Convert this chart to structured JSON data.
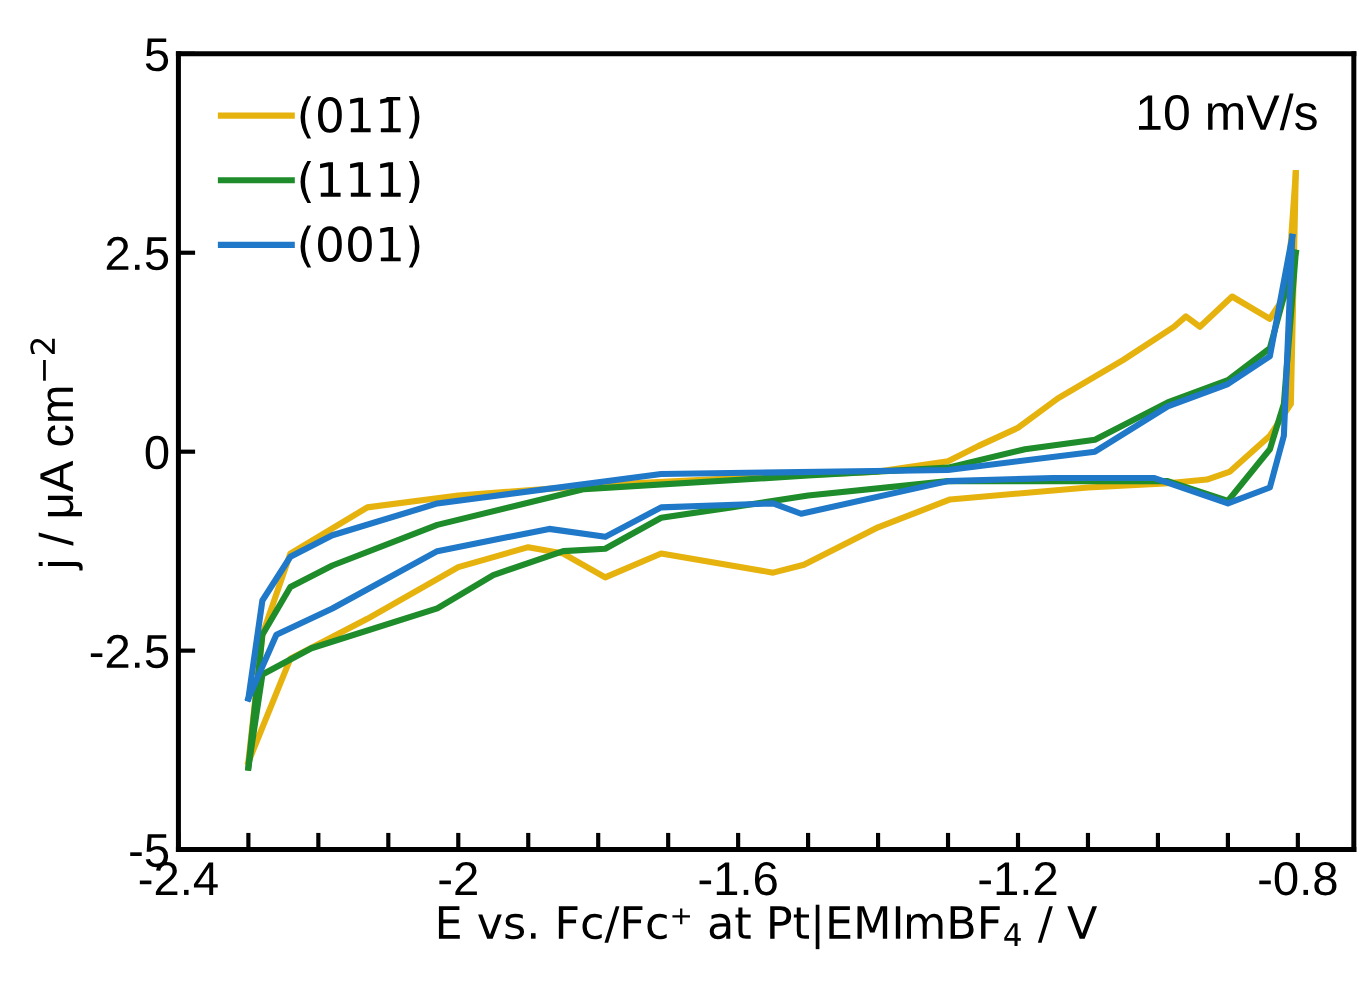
{
  "chart_data": {
    "type": "line",
    "xlabel": "E vs. Fc/Fc⁺ at Pt|EMImBF$_{4}$ / V",
    "ylabel": "j / μA cm$^{−2}$",
    "annotations": [
      "10 mV/s"
    ],
    "xlim": [
      -2.4,
      -0.72
    ],
    "ylim": [
      -5,
      5
    ],
    "xticks": [
      -2.4,
      {
        "value": -2.3,
        "label": null
      },
      {
        "value": -2.2,
        "label": null
      },
      {
        "value": -2.1,
        "label": null
      },
      -2,
      {
        "value": -1.9,
        "label": null
      },
      {
        "value": -1.8,
        "label": null
      },
      {
        "value": -1.7,
        "label": null
      },
      -1.6,
      {
        "value": -1.5,
        "label": null
      },
      {
        "value": -1.4,
        "label": null
      },
      {
        "value": -1.3,
        "label": null
      },
      -1.2,
      {
        "value": -1.1,
        "label": null
      },
      {
        "value": -1.0,
        "label": null
      },
      {
        "value": -0.9,
        "label": null
      },
      -0.8
    ],
    "yticks": [
      5,
      2.5,
      0,
      -2.5,
      -5
    ],
    "legend": "top left",
    "grid": false,
    "series": [
      {
        "name": "(011̄)",
        "color": "#e6b20e",
        "x": [
          -2.3,
          -2.28,
          -2.24,
          -2.13,
          -2.0,
          -1.8,
          -1.6,
          -1.4,
          -1.3,
          -1.257,
          -1.2,
          -1.143,
          -1.05,
          -0.977,
          -0.96,
          -0.94,
          -0.894,
          -0.84,
          -0.815,
          -0.803
        ],
        "values": [
          -3.9,
          -2.3,
          -1.28,
          -0.7,
          -0.55,
          -0.42,
          -0.33,
          -0.25,
          -0.12,
          0.07,
          0.3,
          0.67,
          1.15,
          1.57,
          1.7,
          1.57,
          1.95,
          1.67,
          2.0,
          3.5
        ]
      },
      {
        "color": "#e6b20e",
        "x": [
          -0.803,
          -0.81,
          -0.84,
          -0.897,
          -0.93,
          -0.99,
          -1.1,
          -1.297,
          -1.4,
          -1.506,
          -1.55,
          -1.71,
          -1.79,
          -1.85,
          -1.9,
          -2.0,
          -2.13,
          -2.24,
          -2.3
        ],
        "values": [
          3.5,
          0.6,
          0.2,
          -0.25,
          -0.35,
          -0.4,
          -0.45,
          -0.6,
          -0.95,
          -1.42,
          -1.52,
          -1.28,
          -1.58,
          -1.28,
          -1.2,
          -1.45,
          -2.1,
          -2.6,
          -3.9
        ]
      },
      {
        "name": "(111)",
        "color": "#1e8c2a",
        "x": [
          -2.3,
          -2.28,
          -2.24,
          -2.18,
          -2.03,
          -1.82,
          -1.5,
          -1.3,
          -1.19,
          -1.09,
          -0.986,
          -0.9,
          -0.84,
          -0.803
        ],
        "values": [
          -3.97,
          -2.3,
          -1.7,
          -1.43,
          -0.92,
          -0.47,
          -0.3,
          -0.2,
          0.03,
          0.15,
          0.62,
          0.9,
          1.3,
          2.5
        ]
      },
      {
        "color": "#1e8c2a",
        "x": [
          -0.803,
          -0.82,
          -0.84,
          -0.9,
          -0.986,
          -1.1,
          -1.3,
          -1.5,
          -1.61,
          -1.71,
          -1.79,
          -1.85,
          -1.95,
          -2.03,
          -2.21,
          -2.28,
          -2.3
        ],
        "values": [
          2.5,
          0.6,
          0.03,
          -0.62,
          -0.37,
          -0.37,
          -0.37,
          -0.55,
          -0.7,
          -0.83,
          -1.22,
          -1.25,
          -1.55,
          -1.97,
          -2.47,
          -2.8,
          -3.97
        ]
      },
      {
        "name": "(001)",
        "color": "#1f78c8",
        "x": [
          -2.3,
          -2.28,
          -2.24,
          -2.18,
          -2.03,
          -1.71,
          -1.3,
          -1.09,
          -0.986,
          -0.9,
          -0.84,
          -0.808
        ],
        "values": [
          -3.1,
          -1.87,
          -1.32,
          -1.05,
          -0.65,
          -0.28,
          -0.23,
          0.0,
          0.57,
          0.85,
          1.2,
          2.7
        ]
      },
      {
        "color": "#1f78c8",
        "x": [
          -0.808,
          -0.82,
          -0.84,
          -0.9,
          -1.006,
          -1.15,
          -1.3,
          -1.51,
          -1.55,
          -1.71,
          -1.79,
          -1.87,
          -2.03,
          -2.18,
          -2.26,
          -2.3
        ],
        "values": [
          2.7,
          0.2,
          -0.45,
          -0.65,
          -0.33,
          -0.33,
          -0.37,
          -0.78,
          -0.65,
          -0.7,
          -1.07,
          -0.97,
          -1.25,
          -1.97,
          -2.3,
          -3.1
        ]
      }
    ]
  }
}
